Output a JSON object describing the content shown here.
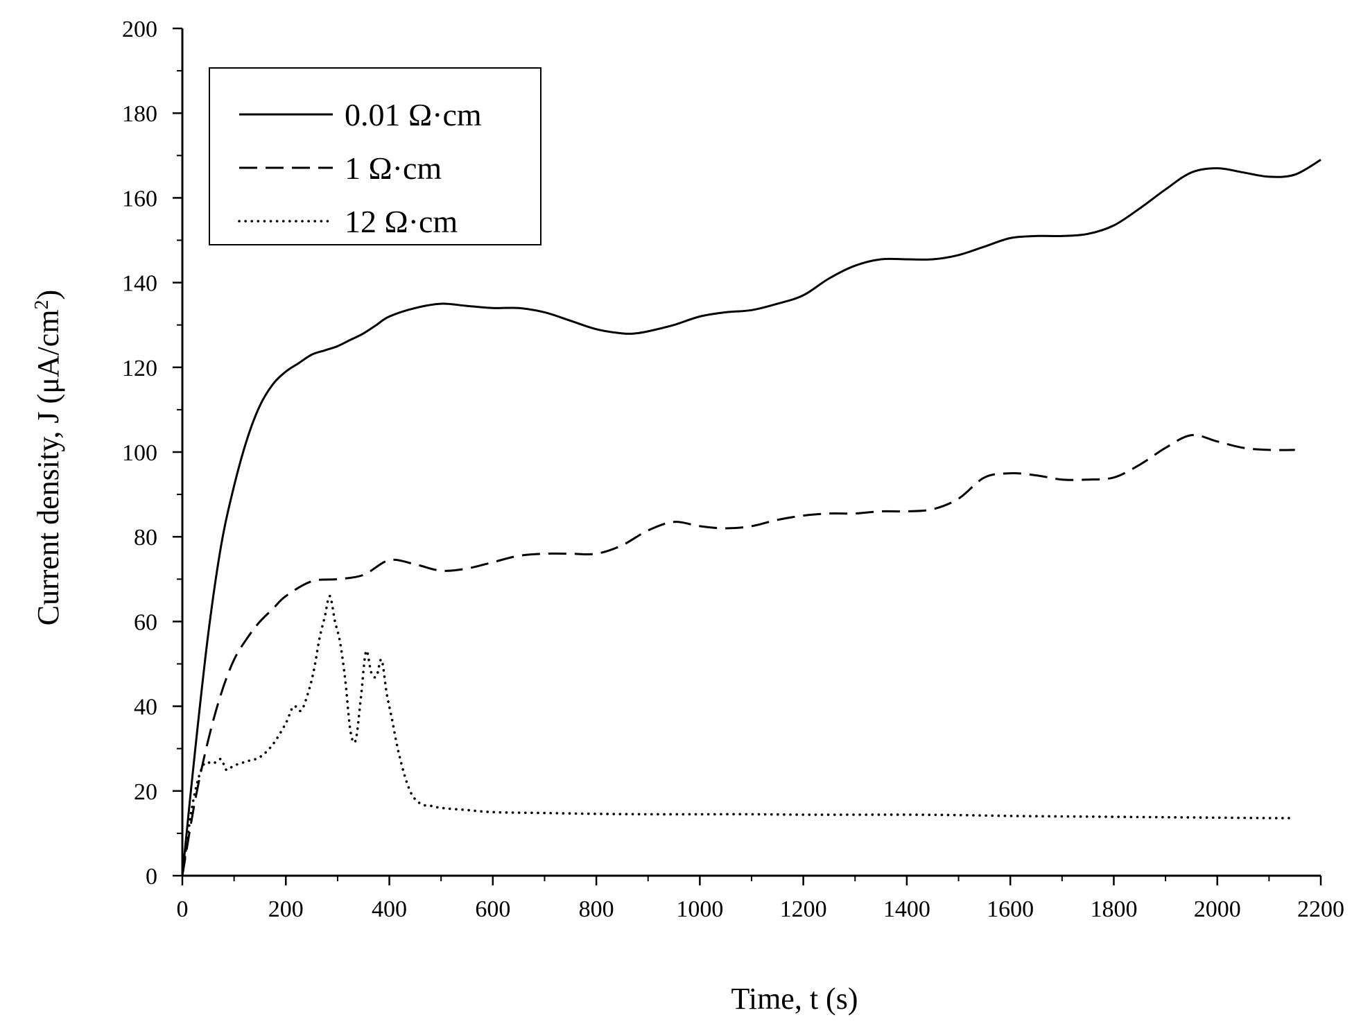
{
  "chart_data": {
    "type": "line",
    "title": "",
    "xlabel": "Time, t (s)",
    "ylabel_main": "Current density, J (μA/cm",
    "ylabel_sup": "2",
    "ylabel_close": ")",
    "xlim": [
      0,
      2200
    ],
    "ylim": [
      0,
      200
    ],
    "xticks": [
      0,
      200,
      400,
      600,
      800,
      1000,
      1200,
      1400,
      1600,
      1800,
      2000,
      2200
    ],
    "yticks": [
      0,
      20,
      40,
      60,
      80,
      100,
      120,
      140,
      160,
      180,
      200
    ],
    "xtick_labels": [
      "0",
      "200",
      "400",
      "600",
      "800",
      "1000",
      "1200",
      "1400",
      "1600",
      "1800",
      "2000",
      "2200"
    ],
    "ytick_labels": [
      "0",
      "20",
      "40",
      "60",
      "80",
      "100",
      "120",
      "140",
      "160",
      "180",
      "200"
    ],
    "grid": false,
    "legend_position": "top-left",
    "series": [
      {
        "name": "0.01 Ω·cm",
        "style": "solid",
        "x": [
          0,
          25,
          50,
          75,
          100,
          125,
          150,
          175,
          200,
          225,
          250,
          275,
          300,
          325,
          350,
          375,
          400,
          450,
          500,
          550,
          600,
          650,
          700,
          750,
          800,
          850,
          875,
          900,
          950,
          1000,
          1050,
          1100,
          1150,
          1200,
          1250,
          1300,
          1350,
          1400,
          1450,
          1500,
          1550,
          1600,
          1650,
          1700,
          1750,
          1800,
          1850,
          1900,
          1950,
          2000,
          2050,
          2100,
          2150,
          2200
        ],
        "y": [
          0,
          30,
          57,
          78,
          92,
          103,
          111,
          116,
          119,
          121,
          123,
          124,
          125,
          126.5,
          128,
          130,
          132,
          134,
          135,
          134.5,
          134,
          134,
          133,
          131,
          129,
          128,
          128,
          128.5,
          130,
          132,
          133,
          133.5,
          135,
          137,
          141,
          144,
          145.5,
          145.5,
          145.5,
          146.5,
          148.5,
          150.5,
          151,
          151,
          151.5,
          153.5,
          157.5,
          162,
          166,
          167,
          166,
          165,
          165.5,
          169
        ]
      },
      {
        "name": "1 Ω·cm",
        "style": "dashed",
        "x": [
          0,
          25,
          50,
          75,
          100,
          125,
          150,
          175,
          200,
          250,
          300,
          350,
          400,
          450,
          500,
          550,
          600,
          650,
          700,
          750,
          800,
          850,
          900,
          950,
          1000,
          1050,
          1100,
          1150,
          1200,
          1250,
          1300,
          1350,
          1400,
          1450,
          1500,
          1550,
          1600,
          1650,
          1700,
          1750,
          1800,
          1850,
          1900,
          1950,
          2000,
          2050,
          2100,
          2150
        ],
        "y": [
          0,
          18,
          32,
          43,
          51,
          56,
          60,
          63,
          66,
          69.5,
          70,
          71,
          74.5,
          73.5,
          72,
          72.5,
          74,
          75.5,
          76,
          76,
          76,
          78,
          81.5,
          83.5,
          82.5,
          82,
          82.5,
          84,
          85,
          85.5,
          85.5,
          86,
          86,
          86.5,
          89,
          94,
          95,
          94.5,
          93.5,
          93.5,
          94,
          97,
          101,
          104,
          102.5,
          101,
          100.5,
          100.5
        ]
      },
      {
        "name": "12 Ω·cm",
        "style": "dotted",
        "x": [
          0,
          20,
          40,
          60,
          75,
          85,
          100,
          125,
          150,
          175,
          200,
          215,
          230,
          245,
          255,
          265,
          275,
          285,
          295,
          305,
          315,
          325,
          335,
          345,
          355,
          365,
          375,
          385,
          395,
          405,
          420,
          440,
          460,
          480,
          500,
          550,
          600,
          700,
          800,
          900,
          1000,
          1100,
          1200,
          1300,
          1400,
          1500,
          1600,
          1700,
          1800,
          1900,
          2000,
          2100,
          2150
        ],
        "y": [
          0,
          17,
          26,
          26.5,
          27.5,
          25,
          26,
          27,
          28,
          31,
          36,
          40,
          39,
          44,
          49,
          56,
          61,
          66,
          60,
          55,
          46,
          34,
          32,
          42,
          53,
          48,
          47,
          51,
          43,
          37,
          28,
          20,
          17,
          16.5,
          16,
          15.5,
          15,
          14.8,
          14.6,
          14.5,
          14.5,
          14.5,
          14.4,
          14.4,
          14.4,
          14.3,
          14.1,
          14.0,
          13.9,
          13.8,
          13.7,
          13.6,
          13.6
        ]
      }
    ]
  }
}
